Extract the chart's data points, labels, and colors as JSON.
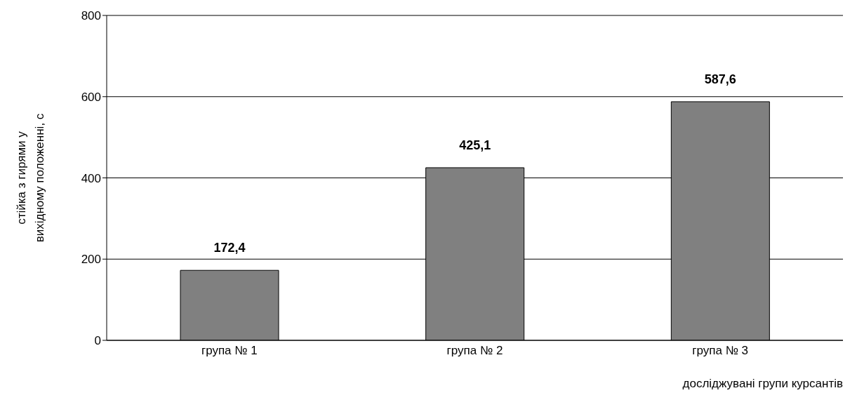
{
  "chart_data": {
    "type": "bar",
    "xlabel": "досліджувані групи курсантів",
    "ylabel": "стійка з гирями у вихідному положенні, с",
    "categories": [
      "група № 1",
      "група № 2",
      "група № 3"
    ],
    "values": [
      172.4,
      425.1,
      587.6
    ],
    "value_labels": [
      "172,4",
      "425,1",
      "587,6"
    ],
    "color": "#808080",
    "ylim": [
      0,
      800
    ],
    "yticks": [
      0,
      200,
      400,
      600,
      800
    ],
    "grid": "y"
  }
}
